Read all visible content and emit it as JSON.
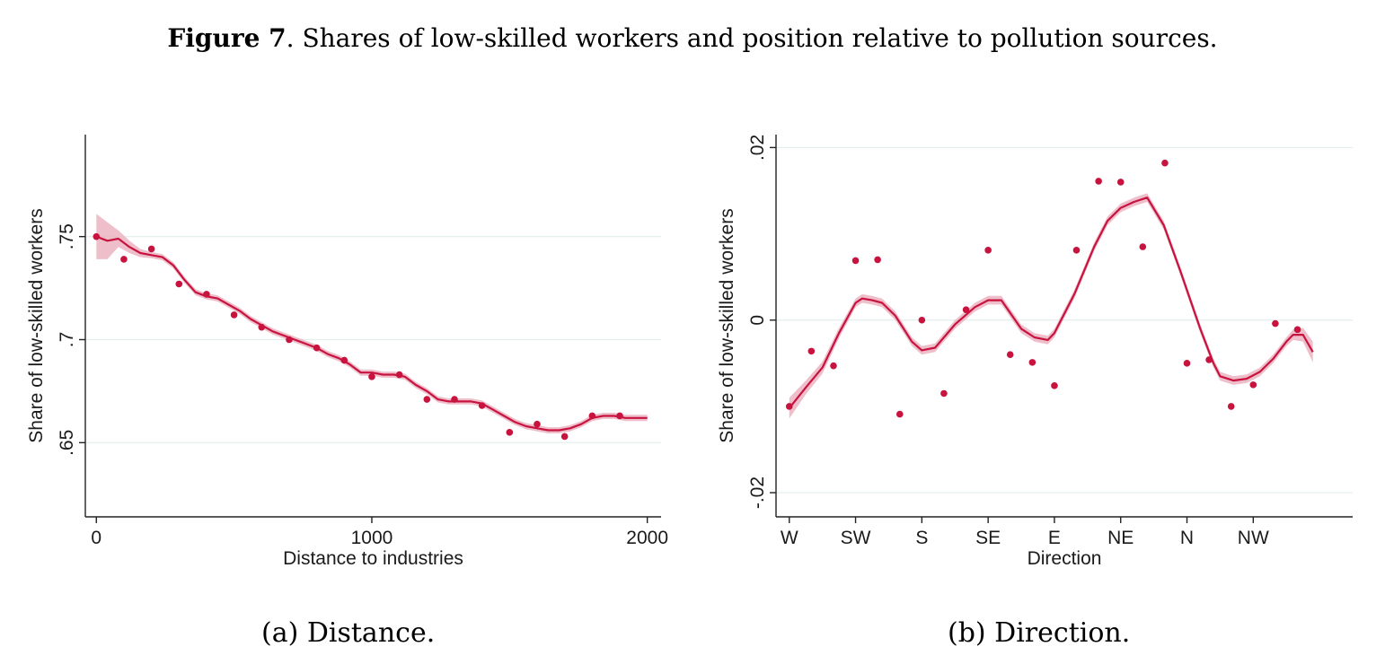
{
  "figure": {
    "label": "Figure 7",
    "title": ". Shares of low-skilled workers and position relative to pollution sources."
  },
  "colors": {
    "series": "#c8133f",
    "band": "#e8a9ba",
    "grid": "#e3eeee",
    "axis": "#222222"
  },
  "chart_data": [
    {
      "type": "scatter",
      "caption": "(a) Distance.",
      "xlabel": "Distance to industries",
      "ylabel": "Share of low-skilled workers",
      "xlim": [
        -40,
        2050
      ],
      "ylim": [
        0.614,
        0.7995
      ],
      "xticks": [
        0,
        1000,
        2000
      ],
      "xtick_labels": [
        "0",
        "1000",
        "2000"
      ],
      "yticks": [
        0.65,
        0.7,
        0.75
      ],
      "ytick_labels": [
        ".65",
        ".7",
        ".75"
      ],
      "grid": true,
      "points": {
        "x": [
          0,
          100,
          200,
          300,
          400,
          500,
          600,
          700,
          800,
          900,
          1000,
          1100,
          1200,
          1300,
          1400,
          1500,
          1600,
          1700,
          1800,
          1900
        ],
        "y": [
          0.75,
          0.739,
          0.744,
          0.727,
          0.722,
          0.712,
          0.706,
          0.7,
          0.696,
          0.69,
          0.682,
          0.683,
          0.671,
          0.671,
          0.668,
          0.655,
          0.659,
          0.653,
          0.663,
          0.663
        ]
      },
      "fit": {
        "x": [
          0,
          40,
          80,
          120,
          160,
          200,
          240,
          280,
          320,
          360,
          400,
          440,
          480,
          520,
          560,
          600,
          640,
          680,
          720,
          760,
          800,
          840,
          880,
          920,
          960,
          1000,
          1040,
          1080,
          1120,
          1160,
          1200,
          1240,
          1280,
          1320,
          1360,
          1400,
          1440,
          1480,
          1520,
          1560,
          1600,
          1640,
          1680,
          1720,
          1760,
          1800,
          1840,
          1880,
          1920,
          1960,
          2000
        ],
        "y": [
          0.75,
          0.748,
          0.749,
          0.745,
          0.742,
          0.741,
          0.74,
          0.736,
          0.729,
          0.723,
          0.721,
          0.72,
          0.717,
          0.714,
          0.71,
          0.707,
          0.704,
          0.702,
          0.7,
          0.698,
          0.696,
          0.693,
          0.691,
          0.688,
          0.684,
          0.684,
          0.683,
          0.683,
          0.682,
          0.678,
          0.675,
          0.671,
          0.67,
          0.67,
          0.67,
          0.669,
          0.666,
          0.663,
          0.66,
          0.658,
          0.657,
          0.656,
          0.656,
          0.657,
          0.659,
          0.662,
          0.663,
          0.663,
          0.662,
          0.662,
          0.662
        ],
        "band": [
          0.011,
          0.009,
          0.004,
          0.003,
          0.002,
          0.0015,
          0.0015,
          0.0015,
          0.0015,
          0.0015,
          0.0015,
          0.0015,
          0.0015,
          0.0015,
          0.0015,
          0.0015,
          0.0015,
          0.0015,
          0.0015,
          0.0015,
          0.0015,
          0.0015,
          0.0015,
          0.0015,
          0.0015,
          0.0015,
          0.0015,
          0.0015,
          0.0015,
          0.0015,
          0.0015,
          0.0015,
          0.0015,
          0.0015,
          0.0015,
          0.0015,
          0.0015,
          0.0015,
          0.0015,
          0.0015,
          0.0015,
          0.0015,
          0.0015,
          0.0015,
          0.0015,
          0.0015,
          0.0015,
          0.0015,
          0.0015,
          0.0015,
          0.0015
        ]
      }
    },
    {
      "type": "scatter",
      "caption": "(b) Direction.",
      "xlabel": "Direction",
      "ylabel": "Share of low-skilled workers",
      "xlim": [
        -0.2,
        8.5
      ],
      "ylim": [
        -0.0228,
        0.0215
      ],
      "xticks": [
        0,
        1,
        2,
        3,
        4,
        5,
        6,
        7
      ],
      "xtick_labels": [
        "W",
        "SW",
        "S",
        "SE",
        "E",
        "NE",
        "N",
        "NW"
      ],
      "yticks": [
        -0.02,
        0,
        0.02
      ],
      "ytick_labels": [
        "-.02",
        "0",
        ".02"
      ],
      "grid": true,
      "points": {
        "x": [
          0,
          0.333,
          0.667,
          1.0,
          1.333,
          1.667,
          2.0,
          2.333,
          2.667,
          3.0,
          3.333,
          3.667,
          4.0,
          4.333,
          4.667,
          5.0,
          5.333,
          5.667,
          6.0,
          6.333,
          6.667,
          7.0,
          7.333,
          7.667
        ],
        "y": [
          -0.01,
          -0.0036,
          -0.0053,
          0.0069,
          0.007,
          -0.0109,
          0.0,
          -0.0085,
          0.0012,
          0.0081,
          -0.004,
          -0.0049,
          -0.0076,
          0.0081,
          0.0161,
          0.016,
          0.0085,
          0.0182,
          -0.005,
          -0.0046,
          -0.01,
          -0.0075,
          -0.0004,
          -0.0011
        ]
      },
      "fit": {
        "x": [
          0,
          0.25,
          0.5,
          0.75,
          1.0,
          1.1,
          1.25,
          1.4,
          1.6,
          1.85,
          2.0,
          2.2,
          2.5,
          2.8,
          3.0,
          3.2,
          3.5,
          3.7,
          3.9,
          4.0,
          4.3,
          4.6,
          4.8,
          5.0,
          5.2,
          5.4,
          5.65,
          5.9,
          6.2,
          6.4,
          6.5,
          6.7,
          6.9,
          7.1,
          7.3,
          7.5,
          7.6,
          7.75,
          7.9
        ],
        "y": [
          -0.0102,
          -0.0078,
          -0.0055,
          -0.0015,
          0.002,
          0.0025,
          0.0023,
          0.002,
          0.0005,
          -0.0025,
          -0.0035,
          -0.0032,
          -0.0005,
          0.0015,
          0.0023,
          0.0023,
          -0.001,
          -0.002,
          -0.0023,
          -0.0015,
          0.003,
          0.0085,
          0.0115,
          0.013,
          0.0137,
          0.0142,
          0.011,
          0.0057,
          -0.001,
          -0.005,
          -0.0065,
          -0.007,
          -0.0068,
          -0.006,
          -0.0045,
          -0.0025,
          -0.0017,
          -0.0017,
          -0.0037
        ],
        "band": [
          0.0012,
          0.0008,
          0.0007,
          0.0006,
          0.0005,
          0.0005,
          0.0005,
          0.0005,
          0.0005,
          0.0005,
          0.0005,
          0.0005,
          0.0005,
          0.0005,
          0.0005,
          0.0005,
          0.0005,
          0.0005,
          0.0005,
          0.0005,
          0.0005,
          0.0005,
          0.0005,
          0.0005,
          0.0005,
          0.0005,
          0.0005,
          0.0005,
          0.0005,
          0.0005,
          0.0005,
          0.0005,
          0.0005,
          0.0005,
          0.0005,
          0.0005,
          0.0006,
          0.0008,
          0.0012
        ]
      }
    }
  ]
}
